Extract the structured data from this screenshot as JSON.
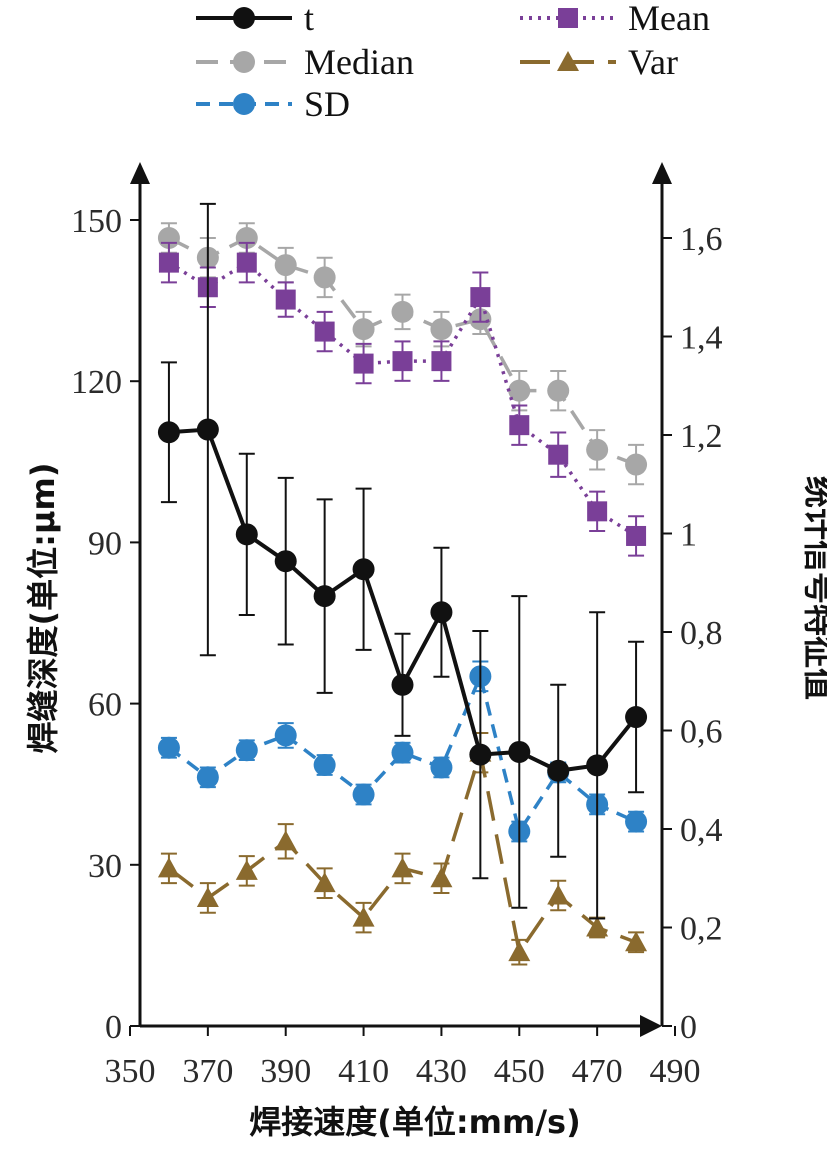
{
  "chart_data": {
    "type": "line",
    "title": "",
    "xlabel": "焊接速度(单位:mm/s)",
    "ylabel": "焊缝深度(单位:μm)",
    "y2label": "统计信号特征值",
    "xlim": [
      350,
      490
    ],
    "ylim": [
      0,
      150
    ],
    "y2lim": [
      0,
      1.6
    ],
    "x_ticks": [
      "350",
      "370",
      "390",
      "410",
      "430",
      "450",
      "470",
      "490"
    ],
    "y_ticks": [
      "0",
      "30",
      "60",
      "90",
      "120",
      "150"
    ],
    "y2_ticks": [
      "0",
      "0,2",
      "0,4",
      "0,6",
      "0,8",
      "1",
      "1,2",
      "1,4",
      "1,6"
    ],
    "x": [
      360,
      370,
      380,
      390,
      400,
      410,
      420,
      430,
      440,
      450,
      460,
      470,
      480
    ],
    "legend_position": "top",
    "series": [
      {
        "name": "t",
        "axis": "left",
        "color": "#111111",
        "dash": "",
        "marker": "circle",
        "values": [
          110.5,
          111,
          91.5,
          86.5,
          80,
          85,
          63.5,
          77,
          50.5,
          51,
          47.5,
          48.5,
          57.5
        ],
        "err": [
          13,
          42,
          15,
          15.5,
          18,
          15,
          9.5,
          12,
          23,
          29,
          16,
          28.5,
          14
        ]
      },
      {
        "name": "Mean",
        "axis": "right",
        "color": "#7a3f98",
        "dash": "3,6",
        "marker": "square",
        "values": [
          1.55,
          1.5,
          1.55,
          1.475,
          1.41,
          1.345,
          1.35,
          1.35,
          1.48,
          1.22,
          1.16,
          1.045,
          0.995
        ],
        "err": [
          0.04,
          0.04,
          0.04,
          0.035,
          0.04,
          0.04,
          0.04,
          0.04,
          0.05,
          0.04,
          0.045,
          0.04,
          0.04
        ]
      },
      {
        "name": "Median",
        "axis": "right",
        "color": "#a7a7a7",
        "dash": "22,12",
        "marker": "circle",
        "values": [
          1.6,
          1.56,
          1.6,
          1.545,
          1.52,
          1.415,
          1.45,
          1.415,
          1.435,
          1.29,
          1.29,
          1.17,
          1.14
        ],
        "err": [
          0.03,
          0.04,
          0.03,
          0.035,
          0.04,
          0.035,
          0.035,
          0.035,
          0.03,
          0.04,
          0.04,
          0.04,
          0.04
        ]
      },
      {
        "name": "Var",
        "axis": "right",
        "color": "#8a6a2e",
        "dash": "30,14",
        "marker": "triangle",
        "values": [
          0.32,
          0.26,
          0.315,
          0.375,
          0.29,
          0.22,
          0.32,
          0.3,
          0.555,
          0.15,
          0.265,
          0.2,
          0.17
        ],
        "err": [
          0.03,
          0.03,
          0.03,
          0.035,
          0.03,
          0.03,
          0.03,
          0.03,
          0.04,
          0.025,
          0.03,
          0.02,
          0.02
        ]
      },
      {
        "name": "SD",
        "axis": "right",
        "color": "#2e82c6",
        "dash": "14,9",
        "marker": "circle",
        "values": [
          0.565,
          0.505,
          0.56,
          0.59,
          0.53,
          0.47,
          0.555,
          0.525,
          0.71,
          0.395,
          0.515,
          0.45,
          0.415
        ],
        "err": [
          0.02,
          0.02,
          0.02,
          0.025,
          0.02,
          0.02,
          0.02,
          0.02,
          0.03,
          0.02,
          0.02,
          0.02,
          0.02
        ]
      }
    ]
  }
}
